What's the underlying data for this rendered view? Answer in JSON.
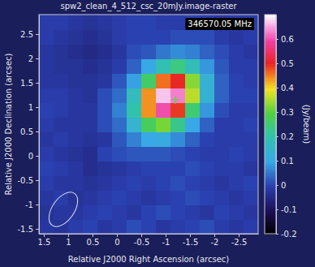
{
  "chart_data": {
    "type": "heatmap",
    "title": "spw2_clean_4_512_csc_20mJy.image-raster",
    "x_label": "Relative J2000 Right Ascension (arcsec)",
    "y_label": "Relative J2000 Declination (arcsec)",
    "annotation": "346570.05 MHz",
    "xlim": [
      1.6,
      -2.9
    ],
    "ylim": [
      -1.6,
      2.9
    ],
    "xticks": [
      1.5,
      1,
      0.5,
      0,
      -0.5,
      -1,
      -1.5,
      -2,
      -2.5
    ],
    "yticks": [
      -1.5,
      -1,
      -0.5,
      0,
      0.5,
      1,
      1.5,
      2,
      2.5
    ],
    "x": [
      1.45,
      1.15,
      0.85,
      0.55,
      0.25,
      -0.05,
      -0.35,
      -0.65,
      -0.95,
      -1.25,
      -1.55,
      -1.85,
      -2.15,
      -2.45,
      -2.75
    ],
    "y": [
      -1.45,
      -1.15,
      -0.85,
      -0.55,
      -0.25,
      0.05,
      0.35,
      0.65,
      0.95,
      1.25,
      1.55,
      1.85,
      2.15,
      2.45,
      2.75
    ],
    "values": [
      [
        -0.02,
        -0.03,
        -0.01,
        0.0,
        -0.02,
        -0.01,
        0.01,
        0.0,
        -0.02,
        -0.01,
        0.0,
        0.01,
        -0.01,
        -0.02,
        -0.01
      ],
      [
        -0.03,
        -0.02,
        -0.02,
        -0.01,
        0.0,
        -0.01,
        -0.02,
        0.0,
        0.01,
        0.0,
        -0.01,
        -0.02,
        0.0,
        -0.01,
        -0.02
      ],
      [
        -0.02,
        -0.01,
        -0.03,
        -0.02,
        -0.01,
        0.0,
        -0.01,
        -0.02,
        -0.01,
        0.0,
        0.01,
        0.0,
        -0.01,
        -0.02,
        -0.01
      ],
      [
        -0.01,
        -0.02,
        -0.02,
        -0.03,
        -0.02,
        -0.01,
        0.0,
        -0.01,
        0.0,
        0.01,
        0.0,
        -0.01,
        -0.02,
        -0.01,
        0.0
      ],
      [
        0.0,
        -0.01,
        -0.02,
        -0.04,
        -0.03,
        -0.02,
        -0.01,
        0.0,
        0.0,
        0.0,
        0.01,
        0.0,
        -0.01,
        -0.01,
        -0.02
      ],
      [
        -0.01,
        -0.02,
        -0.03,
        -0.04,
        0.0,
        0.01,
        0.02,
        0.02,
        0.02,
        0.01,
        0.0,
        -0.01,
        -0.01,
        0.0,
        -0.01
      ],
      [
        -0.02,
        -0.01,
        -0.02,
        -0.03,
        -0.02,
        0.02,
        0.06,
        0.1,
        0.11,
        0.07,
        0.03,
        0.0,
        -0.01,
        -0.01,
        -0.01
      ],
      [
        -0.01,
        -0.02,
        -0.02,
        -0.02,
        0.01,
        0.04,
        0.14,
        0.27,
        0.32,
        0.23,
        0.1,
        0.03,
        -0.01,
        -0.01,
        0.0
      ],
      [
        0.0,
        -0.01,
        -0.02,
        -0.02,
        0.01,
        0.06,
        0.2,
        0.44,
        0.6,
        0.49,
        0.25,
        0.08,
        0.01,
        -0.01,
        -0.01
      ],
      [
        -0.01,
        -0.01,
        -0.02,
        -0.03,
        0.01,
        0.04,
        0.17,
        0.44,
        0.67,
        0.63,
        0.36,
        0.13,
        0.03,
        0.0,
        0.0
      ],
      [
        -0.02,
        -0.02,
        -0.03,
        -0.03,
        -0.02,
        0.02,
        0.09,
        0.26,
        0.46,
        0.5,
        0.33,
        0.13,
        0.03,
        0.0,
        -0.01
      ],
      [
        -0.02,
        -0.03,
        -0.03,
        -0.04,
        -0.03,
        -0.01,
        0.03,
        0.1,
        0.19,
        0.24,
        0.18,
        0.08,
        0.02,
        -0.01,
        -0.01
      ],
      [
        -0.02,
        -0.03,
        -0.04,
        -0.05,
        -0.04,
        -0.02,
        0.01,
        0.02,
        0.05,
        0.07,
        0.06,
        0.03,
        0.01,
        -0.01,
        -0.02
      ],
      [
        -0.01,
        -0.02,
        -0.03,
        -0.04,
        -0.03,
        -0.01,
        0.0,
        0.0,
        0.0,
        0.01,
        0.01,
        0.01,
        -0.01,
        -0.02,
        -0.01
      ],
      [
        -0.01,
        -0.01,
        -0.02,
        -0.03,
        -0.02,
        -0.01,
        0.0,
        0.0,
        -0.01,
        -0.01,
        0.0,
        -0.01,
        -0.02,
        -0.01,
        -0.01
      ]
    ],
    "colorbar": {
      "range": [
        -0.2,
        0.7
      ],
      "ticks": [
        -0.2,
        -0.1,
        0,
        0.1,
        0.2,
        0.3,
        0.4,
        0.5,
        0.6
      ],
      "label": "(Jy/beam)"
    },
    "peak": {
      "x": -1.2,
      "y": 1.15
    },
    "beam": {
      "x": 1.1,
      "y": -1.1,
      "major": 0.8,
      "minor": 0.45,
      "pa": -35
    }
  }
}
